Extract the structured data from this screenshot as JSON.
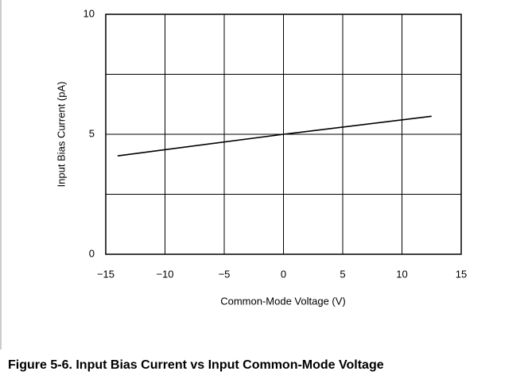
{
  "chart_data": {
    "type": "line",
    "caption": "Figure 5-6. Input Bias Current vs Input Common-Mode Voltage",
    "xlabel": "Common-Mode Voltage (V)",
    "ylabel": "Input Bias Current (pA)",
    "x": [
      -14,
      0,
      12.5
    ],
    "series": [
      {
        "color": "#000000",
        "values": [
          4.1,
          5.0,
          5.75
        ]
      }
    ],
    "xlim": [
      -15,
      15
    ],
    "xticks": [
      {
        "value": -15,
        "label": "−15"
      },
      {
        "value": -10,
        "label": "−10"
      },
      {
        "value": -5,
        "label": "−5"
      },
      0,
      5,
      10,
      15
    ],
    "ylim": [
      0,
      10
    ],
    "yticks": [
      0,
      5,
      10
    ],
    "minor_yticks": [
      2.5,
      7.5
    ],
    "grid": true
  }
}
